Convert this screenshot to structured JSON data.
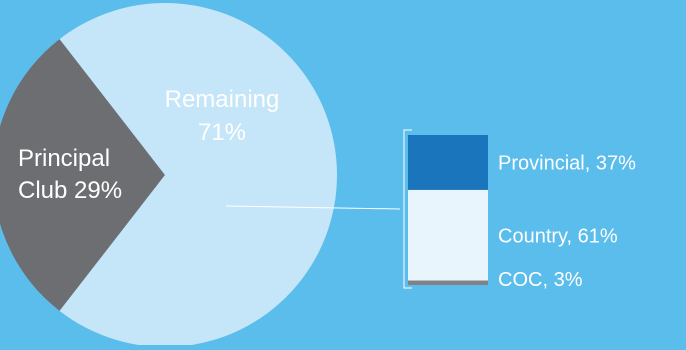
{
  "background_color": "#5bbdec",
  "chart_data": [
    {
      "type": "pie",
      "slices": [
        {
          "label": "Principal Club",
          "label_line1": "Principal",
          "label_line2": "Club",
          "value": 29,
          "value_text": "29%",
          "color": "#6d6e71",
          "text_color": "#ffffff"
        },
        {
          "label": "Remaining",
          "label_line1": "Remaining",
          "value": 71,
          "value_text": "71%",
          "color": "#c5e6f8",
          "text_color": "#ffffff"
        }
      ]
    },
    {
      "type": "bar",
      "stacked": true,
      "breakdown_of": "Remaining",
      "segments": [
        {
          "label": "Provincial",
          "value": 37,
          "value_text": "37%",
          "color": "#1b75bc"
        },
        {
          "label": "Country",
          "value": 61,
          "value_text": "61%",
          "color": "#e9f5fc"
        },
        {
          "label": "COC",
          "value": 3,
          "value_text": "3%",
          "color": "#808285"
        }
      ]
    }
  ]
}
